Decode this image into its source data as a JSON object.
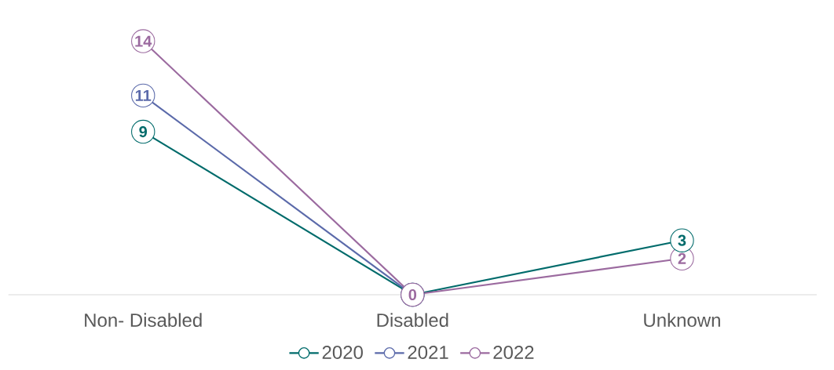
{
  "chart_data": {
    "type": "line",
    "categories": [
      "Non- Disabled",
      "Disabled",
      "Unknown"
    ],
    "series": [
      {
        "name": "2020",
        "color": "#006b6b",
        "values": [
          9,
          0,
          3
        ],
        "value_labels": [
          "9",
          null,
          "3"
        ]
      },
      {
        "name": "2021",
        "color": "#5b6aaa",
        "values": [
          11,
          0,
          null
        ],
        "value_labels": [
          "11",
          null,
          null
        ]
      },
      {
        "name": "2022",
        "color": "#9b6a9f",
        "values": [
          14,
          0,
          2
        ],
        "value_labels": [
          "14",
          "0",
          "2"
        ]
      }
    ],
    "marker": "circle",
    "legend": "bottom",
    "grid": false
  }
}
